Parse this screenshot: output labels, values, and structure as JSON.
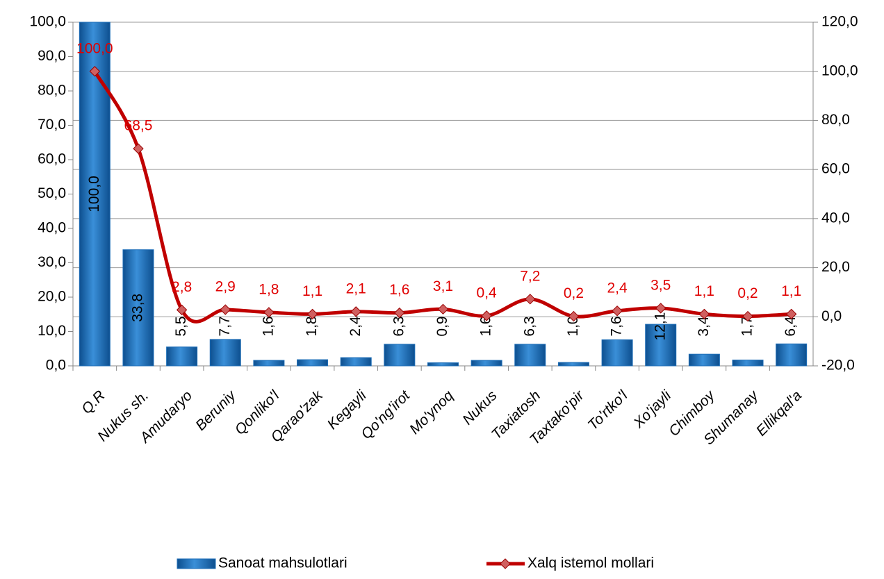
{
  "chart_data": {
    "type": "bar_line",
    "categories": [
      "Q.R",
      "Nukus sh.",
      "Amudaryo",
      "Beruniy",
      "Qonliko'l",
      "Qarao'zak",
      "Kegayli",
      "Qo'ng'irot",
      "Mo'ynoq",
      "Nukus",
      "Taxiatosh",
      "Taxtako'pir",
      "To'rtko'l",
      "Xo'jayli",
      "Chimboy",
      "Shumanay",
      "Ellikqal'a"
    ],
    "series": [
      {
        "name": "Sanoat mahsulotlari",
        "color": "#1f6fb8",
        "type": "bar",
        "values": [
          100,
          33.8,
          5.5,
          7.7,
          1.6,
          1.8,
          2.4,
          6.3,
          0.9,
          1.6,
          6.3,
          1.0,
          7.6,
          12.1,
          3.4,
          1.7,
          6.4
        ],
        "value_labels": [
          "100,0",
          "33,8",
          "5,5",
          "7,7",
          "1,6",
          "1,8",
          "2,4",
          "6,3",
          "0,9",
          "1,6",
          "6,3",
          "1,0",
          "7,6",
          "12,1",
          "3,4",
          "1,7",
          "6,4"
        ]
      },
      {
        "name": "Xalq istemol mollari",
        "color": "#c00000",
        "type": "line",
        "axis": "y2",
        "values": [
          100,
          68.5,
          2.8,
          2.9,
          1.8,
          1.1,
          2.1,
          1.6,
          3.1,
          0.4,
          7.2,
          0.2,
          2.4,
          3.5,
          1.1,
          0.2,
          1.1
        ],
        "value_labels": [
          "100,0",
          "68,5",
          "2,8",
          "2,9",
          "1,8",
          "1,1",
          "2,1",
          "1,6",
          "3,1",
          "0,4",
          "7,2",
          "0,2",
          "2,4",
          "3,5",
          "1,1",
          "0,2",
          "1,1"
        ]
      }
    ],
    "ylim": [
      0,
      100
    ],
    "yticks": [
      {
        "value": 0,
        "label": "0,0"
      },
      {
        "value": 10,
        "label": "10,0"
      },
      {
        "value": 20,
        "label": "20,0"
      },
      {
        "value": 30,
        "label": "30,0"
      },
      {
        "value": 40,
        "label": "40,0"
      },
      {
        "value": 50,
        "label": "50,0"
      },
      {
        "value": 60,
        "label": "60,0"
      },
      {
        "value": 70,
        "label": "70,0"
      },
      {
        "value": 80,
        "label": "80,0"
      },
      {
        "value": 90,
        "label": "90,0"
      },
      {
        "value": 100,
        "label": "100,0"
      }
    ],
    "y2lim": [
      -20,
      120
    ],
    "y2ticks": [
      {
        "value": -20,
        "label": "-20,0"
      },
      {
        "value": 0,
        "label": "0,0"
      },
      {
        "value": 20,
        "label": "20,0"
      },
      {
        "value": 40,
        "label": "40,0"
      },
      {
        "value": 60,
        "label": "60,0"
      },
      {
        "value": 80,
        "label": "80,0"
      },
      {
        "value": 100,
        "label": "100,0"
      },
      {
        "value": 120,
        "label": "120,0"
      }
    ],
    "grid": true
  }
}
